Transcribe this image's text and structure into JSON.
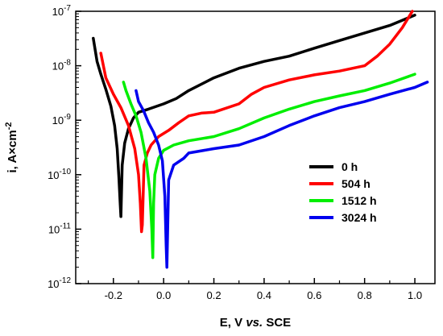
{
  "chart_data": {
    "type": "line",
    "title": "",
    "xlabel": "E, V vs. SCE",
    "ylabel": "i, A×cm⁻²",
    "x_scale": "linear",
    "y_scale": "log",
    "xlim": [
      -0.35,
      1.08
    ],
    "ylim": [
      1e-12,
      1e-07
    ],
    "x_ticks": [
      -0.2,
      0.0,
      0.2,
      0.4,
      0.6,
      0.8,
      1.0
    ],
    "x_tick_labels": [
      "-0.2",
      "0.0",
      "0.2",
      "0.4",
      "0.6",
      "0.8",
      "1.0"
    ],
    "y_ticks": [
      1e-12,
      1e-11,
      1e-10,
      1e-09,
      1e-08,
      1e-07
    ],
    "y_tick_labels": [
      "10-12",
      "10-11",
      "10-10",
      "10-9",
      "10-8",
      "10-7"
    ],
    "grid": false,
    "legend_position": "right-middle",
    "series": [
      {
        "name": "0 h",
        "color": "#000000",
        "x": [
          -0.28,
          -0.265,
          -0.25,
          -0.23,
          -0.21,
          -0.195,
          -0.185,
          -0.178,
          -0.173,
          -0.17,
          -0.165,
          -0.155,
          -0.14,
          -0.12,
          -0.1,
          -0.06,
          0.0,
          0.05,
          0.1,
          0.2,
          0.3,
          0.4,
          0.5,
          0.6,
          0.7,
          0.8,
          0.9,
          1.0
        ],
        "y": [
          3.2e-08,
          1.2e-08,
          7e-09,
          3.7e-09,
          1.8e-09,
          8e-10,
          3e-10,
          9e-11,
          3e-11,
          1.7e-11,
          1.5e-10,
          3.8e-10,
          7e-10,
          1.1e-09,
          1.4e-09,
          1.6e-09,
          2e-09,
          2.5e-09,
          3.5e-09,
          6e-09,
          9e-09,
          1.2e-08,
          1.5e-08,
          2.1e-08,
          2.9e-08,
          4e-08,
          5.5e-08,
          8.5e-08
        ]
      },
      {
        "name": "504 h",
        "color": "#ff0000",
        "x": [
          -0.25,
          -0.23,
          -0.2,
          -0.17,
          -0.14,
          -0.115,
          -0.1,
          -0.093,
          -0.088,
          -0.085,
          -0.078,
          -0.065,
          -0.05,
          -0.02,
          0.02,
          0.06,
          0.1,
          0.15,
          0.2,
          0.3,
          0.35,
          0.4,
          0.5,
          0.6,
          0.7,
          0.8,
          0.85,
          0.9,
          0.95,
          0.99
        ],
        "y": [
          1.7e-08,
          6e-09,
          3e-09,
          1.7e-09,
          8e-10,
          3e-10,
          1e-10,
          3e-11,
          9e-12,
          1.2e-11,
          1.5e-10,
          2.5e-10,
          3.5e-10,
          5e-10,
          6.5e-10,
          9e-10,
          1.2e-09,
          1.35e-09,
          1.4e-09,
          2e-09,
          3e-09,
          4e-09,
          5.5e-09,
          6.8e-09,
          8e-09,
          1e-08,
          1.5e-08,
          2.5e-08,
          5e-08,
          1e-07
        ]
      },
      {
        "name": "1512 h",
        "color": "#00ee00",
        "x": [
          -0.16,
          -0.15,
          -0.13,
          -0.11,
          -0.09,
          -0.07,
          -0.055,
          -0.047,
          -0.043,
          -0.04,
          -0.035,
          -0.02,
          0.0,
          0.04,
          0.1,
          0.2,
          0.3,
          0.4,
          0.5,
          0.6,
          0.7,
          0.8,
          0.9,
          1.0
        ],
        "y": [
          5e-09,
          3.5e-09,
          2e-09,
          1.2e-09,
          6e-10,
          2e-10,
          5e-11,
          1e-11,
          3e-12,
          3e-11,
          1e-10,
          2e-10,
          2.8e-10,
          3.5e-10,
          4.2e-10,
          5e-10,
          7e-10,
          1.1e-09,
          1.6e-09,
          2.2e-09,
          2.8e-09,
          3.5e-09,
          4.8e-09,
          7e-09
        ]
      },
      {
        "name": "3024 h",
        "color": "#0000ee",
        "x": [
          -0.11,
          -0.1,
          -0.08,
          -0.06,
          -0.04,
          -0.02,
          -0.005,
          0.005,
          0.01,
          0.013,
          0.02,
          0.04,
          0.08,
          0.1,
          0.2,
          0.3,
          0.4,
          0.5,
          0.6,
          0.7,
          0.8,
          0.9,
          1.0,
          1.05
        ],
        "y": [
          3.5e-09,
          2.2e-09,
          1.5e-09,
          9e-10,
          6e-10,
          3.5e-10,
          1.8e-10,
          4e-11,
          5e-12,
          2e-12,
          8e-11,
          1.5e-10,
          2e-10,
          2.5e-10,
          3e-10,
          3.5e-10,
          5e-10,
          8e-10,
          1.2e-09,
          1.7e-09,
          2.2e-09,
          3e-09,
          4e-09,
          5e-09
        ]
      }
    ]
  }
}
